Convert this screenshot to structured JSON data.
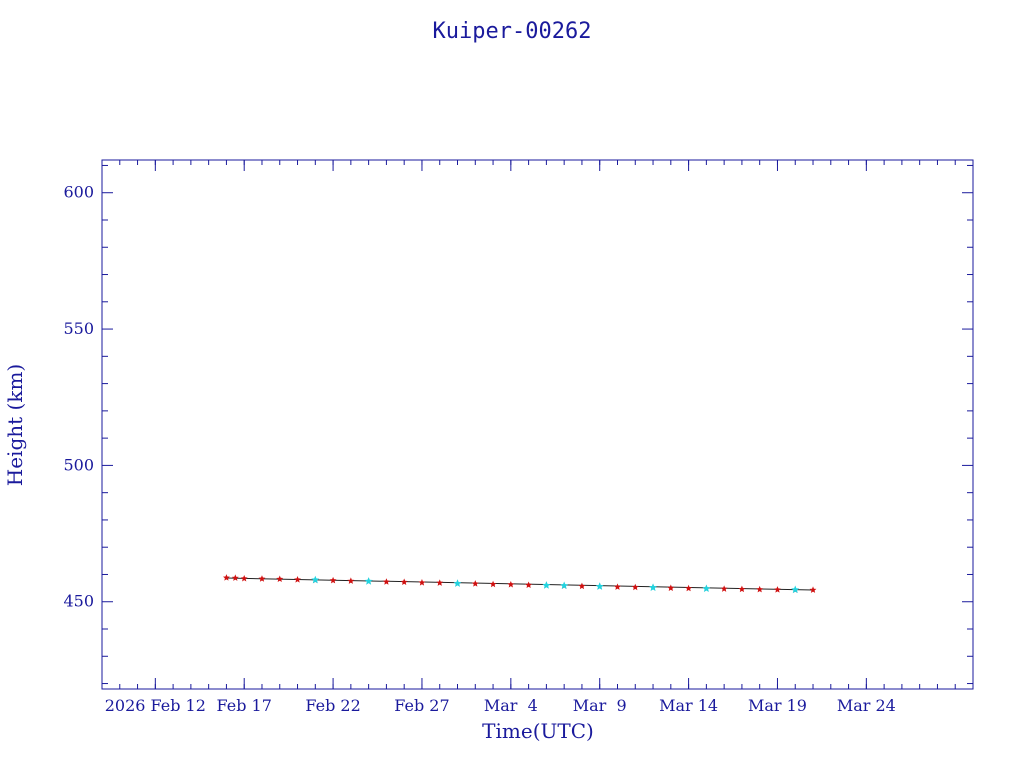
{
  "chart_data": {
    "type": "scatter",
    "title": "Kuiper-00262",
    "xlabel": "Time(UTC)",
    "ylabel": "Height (km)",
    "x_type": "date",
    "x_range": [
      "2026-02-09",
      "2026-03-30"
    ],
    "ylim": [
      418,
      612
    ],
    "y_ticks": [
      450,
      500,
      550,
      600
    ],
    "x_tick_labels": [
      {
        "date": "2026-02-12",
        "label": "2026 Feb 12"
      },
      {
        "date": "2026-02-17",
        "label": "Feb 17"
      },
      {
        "date": "2026-02-22",
        "label": "Feb 22"
      },
      {
        "date": "2026-02-27",
        "label": "Feb 27"
      },
      {
        "date": "2026-03-04",
        "label": "Mar  4"
      },
      {
        "date": "2026-03-09",
        "label": "Mar  9"
      },
      {
        "date": "2026-03-14",
        "label": "Mar 14"
      },
      {
        "date": "2026-03-19",
        "label": "Mar 19"
      },
      {
        "date": "2026-03-24",
        "label": "Mar 24"
      }
    ],
    "grid": false,
    "trend_line": {
      "start": [
        "2026-02-16",
        458.7
      ],
      "end": [
        "2026-03-21",
        454.3
      ]
    },
    "series": [
      {
        "color": "#d01010",
        "points": [
          [
            "2026-02-16",
            458.8
          ],
          [
            "2026-02-16.5",
            458.7
          ],
          [
            "2026-02-17",
            458.5
          ],
          [
            "2026-02-18",
            458.4
          ],
          [
            "2026-02-19",
            458.3
          ],
          [
            "2026-02-20",
            458.1
          ],
          [
            "2026-02-21",
            457.9
          ],
          [
            "2026-02-22",
            457.8
          ],
          [
            "2026-02-23",
            457.6
          ],
          [
            "2026-02-24",
            457.5
          ],
          [
            "2026-02-25",
            457.3
          ],
          [
            "2026-02-26",
            457.2
          ],
          [
            "2026-02-27",
            457.0
          ],
          [
            "2026-02-28",
            456.9
          ],
          [
            "2026-03-01",
            456.7
          ],
          [
            "2026-03-02",
            456.6
          ],
          [
            "2026-03-03",
            456.4
          ],
          [
            "2026-03-04",
            456.3
          ],
          [
            "2026-03-05",
            456.1
          ],
          [
            "2026-03-06",
            456.0
          ],
          [
            "2026-03-07",
            455.8
          ],
          [
            "2026-03-08",
            455.7
          ],
          [
            "2026-03-09",
            455.6
          ],
          [
            "2026-03-10",
            455.4
          ],
          [
            "2026-03-11",
            455.3
          ],
          [
            "2026-03-12",
            455.2
          ],
          [
            "2026-03-13",
            455.0
          ],
          [
            "2026-03-14",
            454.9
          ],
          [
            "2026-03-15",
            454.8
          ],
          [
            "2026-03-16",
            454.7
          ],
          [
            "2026-03-17",
            454.6
          ],
          [
            "2026-03-18",
            454.5
          ],
          [
            "2026-03-19",
            454.4
          ],
          [
            "2026-03-20",
            454.3
          ],
          [
            "2026-03-21",
            454.3
          ]
        ]
      },
      {
        "color": "#22d4e0",
        "points": [
          [
            "2026-02-21",
            458.0
          ],
          [
            "2026-02-24",
            457.5
          ],
          [
            "2026-03-01",
            456.7
          ],
          [
            "2026-03-06",
            456.0
          ],
          [
            "2026-03-07",
            455.9
          ],
          [
            "2026-03-09",
            455.6
          ],
          [
            "2026-03-12",
            455.2
          ],
          [
            "2026-03-15",
            454.8
          ],
          [
            "2026-03-20",
            454.4
          ]
        ]
      }
    ]
  }
}
